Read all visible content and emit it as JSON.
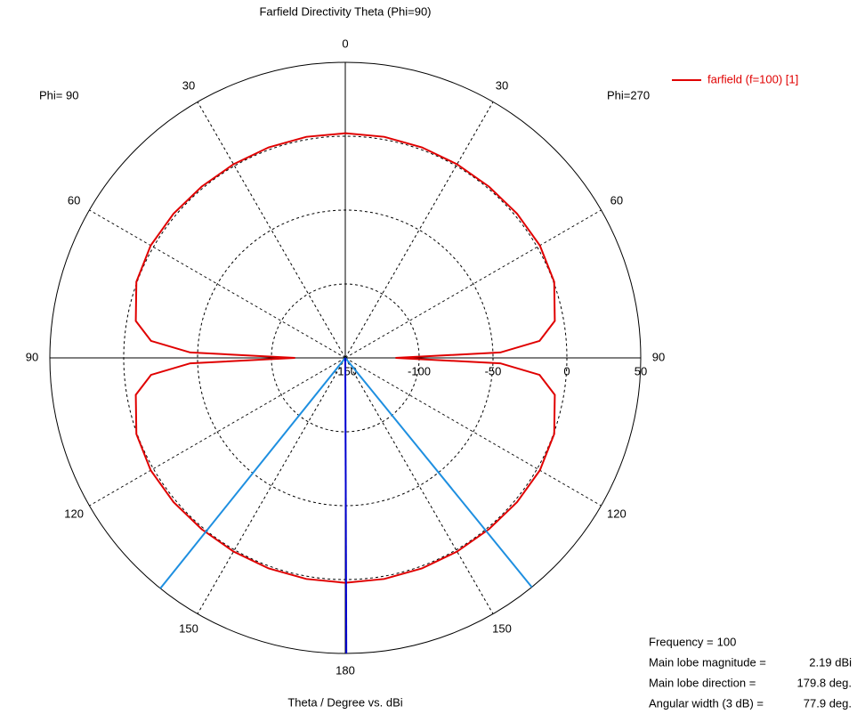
{
  "chart_data": {
    "type": "polar",
    "title": "Farfield Directivity Theta (Phi=90)",
    "xlabel": "Theta / Degree vs. dBi",
    "left_label": "Phi= 90",
    "right_label": "Phi=270",
    "angle_ticks": [
      0,
      30,
      60,
      90,
      120,
      150,
      180
    ],
    "rlim": [
      -150,
      50
    ],
    "rticks": [
      -150,
      -100,
      -50,
      0,
      50
    ],
    "grid": true,
    "legend": "top-right",
    "series": [
      {
        "name": "farfield (f=100) [1]",
        "color": "#e00000",
        "x": [
          0,
          10,
          20,
          30,
          40,
          50,
          60,
          70,
          80,
          85,
          88,
          90,
          92,
          95,
          100,
          110,
          120,
          130,
          140,
          150,
          160,
          170,
          180,
          190,
          200,
          210,
          220,
          230,
          240,
          250,
          260,
          265,
          268,
          270,
          272,
          275,
          280,
          290,
          300,
          310,
          320,
          330,
          340,
          350,
          360
        ],
        "values": [
          2.0,
          1.9,
          1.6,
          1.3,
          1.3,
          1.8,
          2.1,
          0.5,
          -6,
          -18,
          -45,
          -116,
          -45,
          -18,
          -6,
          0.5,
          2.1,
          1.8,
          1.3,
          1.3,
          1.6,
          1.9,
          2.19,
          1.9,
          1.6,
          1.3,
          1.3,
          1.8,
          2.1,
          0.5,
          -6,
          -18,
          -45,
          -116,
          -45,
          -18,
          -6,
          0.5,
          2.1,
          1.8,
          1.3,
          1.3,
          1.6,
          1.9,
          2.0
        ]
      }
    ],
    "info": [
      {
        "label": "Frequency =",
        "value": 100
      },
      {
        "label": "Main lobe magnitude =",
        "value": 2.19,
        "value_label": "2.19 dBi"
      },
      {
        "label": "Main lobe direction =",
        "value": 179.8,
        "value_label": "179.8 deg."
      },
      {
        "label": "Angular width (3 dB) =",
        "value": 77.9,
        "value_label": "77.9 deg."
      }
    ]
  }
}
